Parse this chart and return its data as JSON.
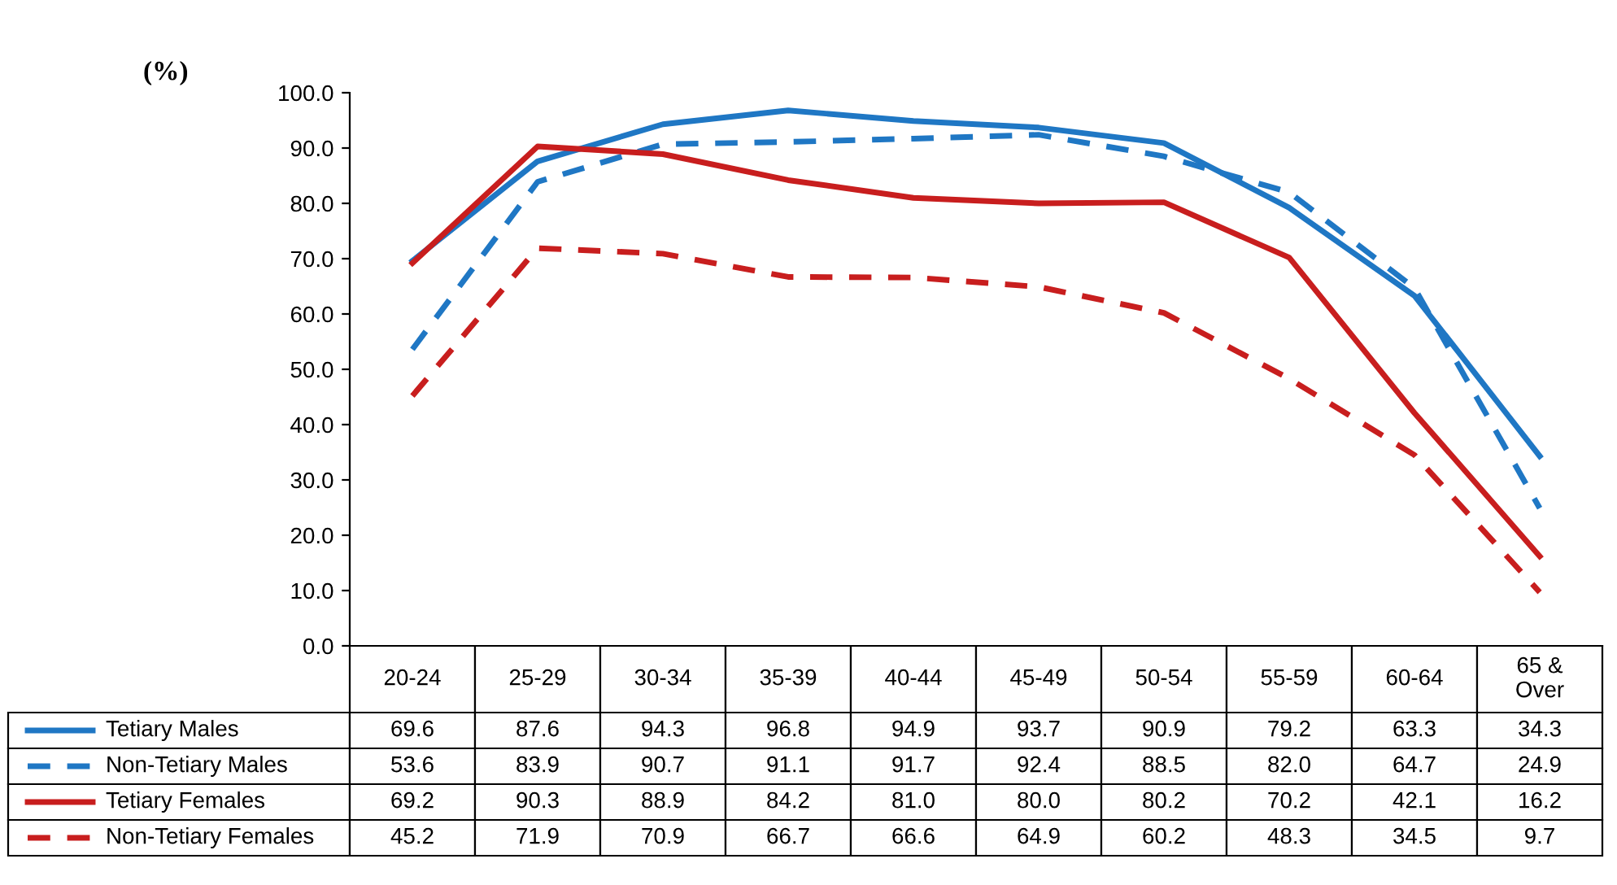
{
  "chart_data": {
    "type": "line",
    "ylabel": "(%)",
    "categories": [
      "20-24",
      "25-29",
      "30-34",
      "35-39",
      "40-44",
      "45-49",
      "50-54",
      "55-59",
      "60-64",
      "65 &\nOver"
    ],
    "series": [
      {
        "name": "Tetiary Males",
        "color": "#1f77c4",
        "line_style": "solid",
        "values": [
          69.6,
          87.6,
          94.3,
          96.8,
          94.9,
          93.7,
          90.9,
          79.2,
          63.3,
          34.3
        ],
        "value_labels": [
          "69.6",
          "87.6",
          "94.3",
          "96.8",
          "94.9",
          "93.7",
          "90.9",
          "79.2",
          "63.3",
          "34.3"
        ]
      },
      {
        "name": "Non-Tetiary Males",
        "color": "#1f77c4",
        "line_style": "dashed",
        "values": [
          53.6,
          83.9,
          90.7,
          91.1,
          91.7,
          92.4,
          88.5,
          82.0,
          64.7,
          24.9
        ],
        "value_labels": [
          "53.6",
          "83.9",
          "90.7",
          "91.1",
          "91.7",
          "92.4",
          "88.5",
          "82.0",
          "64.7",
          "24.9"
        ]
      },
      {
        "name": "Tetiary Females",
        "color": "#c81e1e",
        "line_style": "solid",
        "values": [
          69.2,
          90.3,
          88.9,
          84.2,
          81.0,
          80.0,
          80.2,
          70.2,
          42.1,
          16.2
        ],
        "value_labels": [
          "69.2",
          "90.3",
          "88.9",
          "84.2",
          "81.0",
          "80.0",
          "80.2",
          "70.2",
          "42.1",
          "16.2"
        ]
      },
      {
        "name": "Non-Tetiary Females",
        "color": "#c81e1e",
        "line_style": "dashed",
        "values": [
          45.2,
          71.9,
          70.9,
          66.7,
          66.6,
          64.9,
          60.2,
          48.3,
          34.5,
          9.7
        ],
        "value_labels": [
          "45.2",
          "71.9",
          "70.9",
          "66.7",
          "66.6",
          "64.9",
          "60.2",
          "48.3",
          "34.5",
          "9.7"
        ]
      }
    ],
    "ylim": [
      0,
      100
    ],
    "yticks": [
      {
        "value": 0,
        "label": "0.0"
      },
      {
        "value": 10,
        "label": "10.0"
      },
      {
        "value": 20,
        "label": "20.0"
      },
      {
        "value": 30,
        "label": "30.0"
      },
      {
        "value": 40,
        "label": "40.0"
      },
      {
        "value": 50,
        "label": "50.0"
      },
      {
        "value": 60,
        "label": "60.0"
      },
      {
        "value": 70,
        "label": "70.0"
      },
      {
        "value": 80,
        "label": "80.0"
      },
      {
        "value": 90,
        "label": "90.0"
      },
      {
        "value": 100,
        "label": "100.0"
      }
    ],
    "legend": "bottom left",
    "grid": false,
    "marker": "none"
  }
}
